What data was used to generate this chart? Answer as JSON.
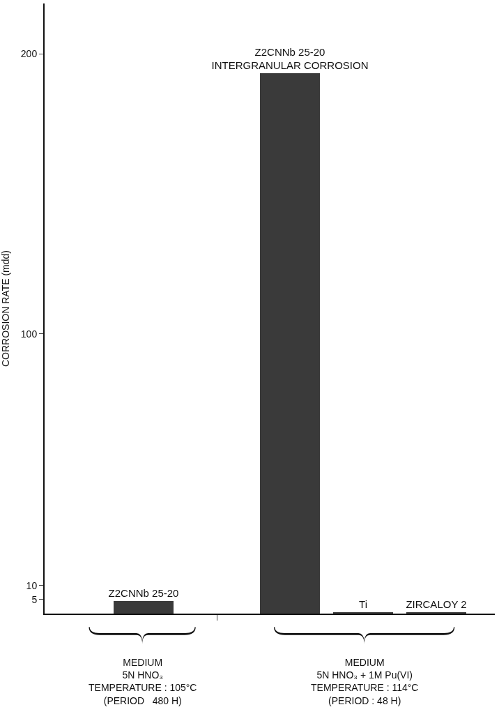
{
  "chart_data": {
    "type": "bar",
    "ylabel": "CORROSION RATE (mdd)",
    "categories": [
      "Z2CNNb 25-20",
      null,
      "Z2CNNb 25-20\nINTERGRANULAR CORROSION",
      "Ti",
      "ZIRCALOY 2"
    ],
    "values": [
      4.5,
      null,
      193,
      0.6,
      0.6
    ],
    "color": "#3a3a3a",
    "ylim": [
      0,
      218
    ],
    "yticks": [
      5,
      10,
      100,
      200
    ],
    "legend": false,
    "annotations": [
      "MEDIUM\n5N HNO₃\nTEMPERATURE : 105°C\n(PERIOD   480 H)",
      "MEDIUM\n5N HNO₃ + 1M Pu(VI)\nTEMPERATURE : 114°C\n(PERIOD : 48 H)"
    ]
  }
}
